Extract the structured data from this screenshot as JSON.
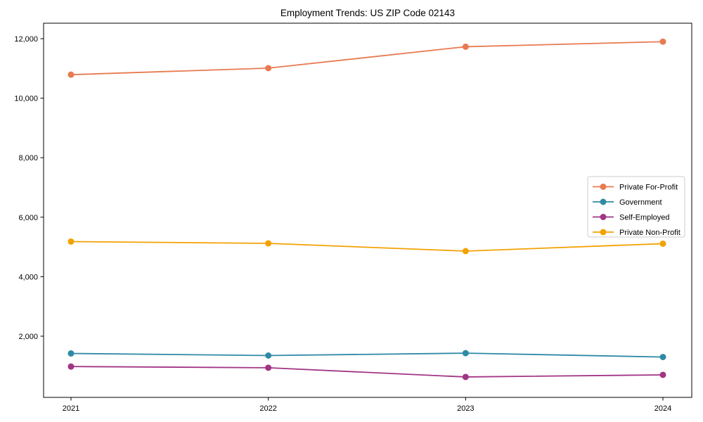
{
  "title": "Employment Trends: US ZIP Code 02143",
  "chart_data": {
    "type": "line",
    "title": "Employment Trends: US ZIP Code 02143",
    "xlabel": "",
    "ylabel": "",
    "grid": false,
    "legend_position": "center right",
    "marker": "circle",
    "categories": [
      "2021",
      "2022",
      "2023",
      "2024"
    ],
    "x": [
      2021,
      2022,
      2023,
      2024
    ],
    "series": [
      {
        "name": "Private For-Profit",
        "color": "#e87a50",
        "values": [
          10790,
          11010,
          11730,
          11900
        ]
      },
      {
        "name": "Government",
        "color": "#2f8aa6",
        "values": [
          1420,
          1350,
          1430,
          1300
        ]
      },
      {
        "name": "Self-Employed",
        "color": "#a23585",
        "values": [
          980,
          940,
          630,
          700
        ]
      },
      {
        "name": "Private Non-Profit",
        "color": "#f3a205",
        "values": [
          5180,
          5120,
          4860,
          5110
        ]
      }
    ],
    "yticks": [
      2000,
      4000,
      6000,
      8000,
      10000,
      12000
    ],
    "ytick_labels": [
      "2,000",
      "4,000",
      "6,000",
      "8,000",
      "10,000",
      "12,000"
    ],
    "ylim": [
      -60,
      12520
    ],
    "axis_color": "#000000",
    "legend_border_color": "#cccccc",
    "legend_bg_color": "#ffffff"
  }
}
